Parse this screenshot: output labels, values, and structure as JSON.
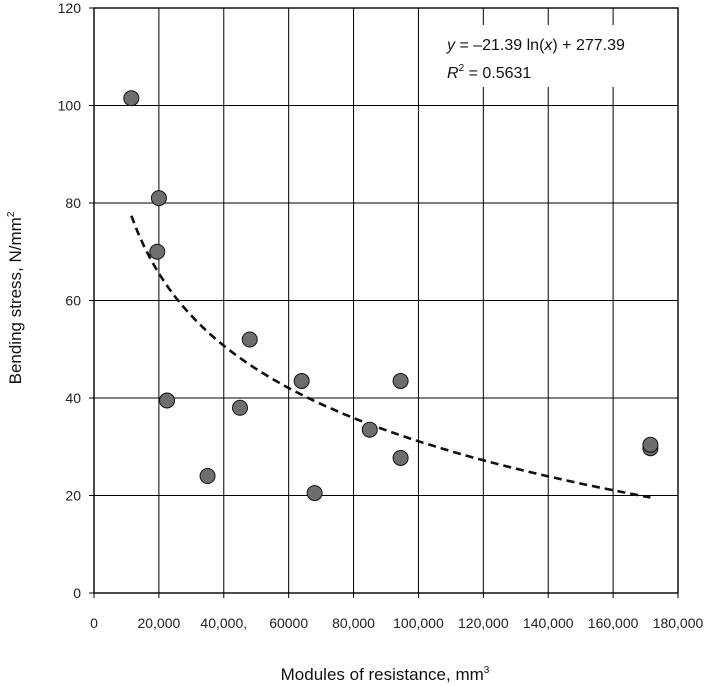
{
  "chart_data": {
    "type": "scatter",
    "title": "",
    "xlabel": "Modules of resistance, mm",
    "xlabel_sup": "3",
    "ylabel": "Bending stress, N/mm",
    "ylabel_sup": "2",
    "xlim": [
      0,
      180000
    ],
    "ylim": [
      0,
      120
    ],
    "x_ticks": [
      0,
      20000,
      40000,
      60000,
      80000,
      100000,
      120000,
      140000,
      160000,
      180000
    ],
    "x_tick_labels": [
      "0",
      "20,000",
      "40,000,",
      "60000",
      "80,000",
      "100,000",
      "120,000",
      "140,000",
      "160,000",
      "180,000"
    ],
    "y_ticks": [
      0,
      20,
      40,
      60,
      80,
      100,
      120
    ],
    "y_tick_labels": [
      "0",
      "20",
      "40",
      "60",
      "80",
      "100",
      "120"
    ],
    "grid": true,
    "series": [
      {
        "points": [
          {
            "x": 11500,
            "y": 101.5
          },
          {
            "x": 20000,
            "y": 81.0
          },
          {
            "x": 19500,
            "y": 70.0
          },
          {
            "x": 22500,
            "y": 39.5
          },
          {
            "x": 35000,
            "y": 24.0
          },
          {
            "x": 45000,
            "y": 38.0
          },
          {
            "x": 48000,
            "y": 52.0
          },
          {
            "x": 64000,
            "y": 43.5
          },
          {
            "x": 68000,
            "y": 20.5
          },
          {
            "x": 85000,
            "y": 33.5
          },
          {
            "x": 94500,
            "y": 43.5
          },
          {
            "x": 94500,
            "y": 27.7
          },
          {
            "x": 171500,
            "y": 29.7
          },
          {
            "x": 171500,
            "y": 30.4
          }
        ],
        "marker_color": "#6e6e6e"
      }
    ],
    "trendline": {
      "type": "logarithmic",
      "a": -21.39,
      "b": 277.39,
      "x_range": [
        11500,
        171500
      ],
      "style": "dashed",
      "color": "#111111"
    },
    "annotation": {
      "eq_y": "y",
      "eq_mid": " = –21.39 ln(",
      "eq_x": "x",
      "eq_end": ") + 277.39",
      "r2_r": "R",
      "r2_sup": "2",
      "r2_val": " = 0.5631"
    }
  }
}
